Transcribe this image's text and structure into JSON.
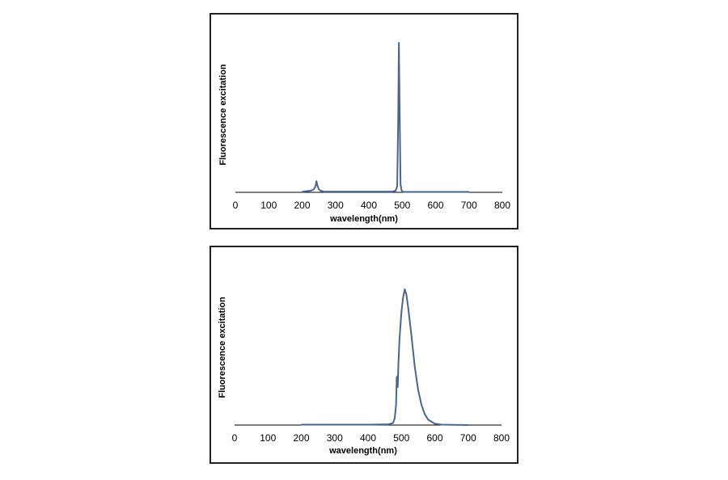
{
  "colors": {
    "line": "#4a6690",
    "axis": "#000000",
    "frame": "#222222"
  },
  "chart_data": [
    {
      "type": "line",
      "xlabel": "wavelength(nm)",
      "ylabel": "Fluorescence excitation",
      "xlim": [
        0,
        800
      ],
      "ylim": [
        0,
        1
      ],
      "xticks": [
        "0",
        "100",
        "200",
        "300",
        "400",
        "500",
        "600",
        "700",
        "800"
      ],
      "series": [
        {
          "x": [
            200,
            225,
            235,
            240,
            243,
            246,
            250,
            256,
            265,
            300,
            400,
            470,
            480,
            485,
            488,
            490,
            492,
            495,
            498,
            500,
            505,
            520,
            600,
            700
          ],
          "y": [
            0.005,
            0.01,
            0.02,
            0.04,
            0.075,
            0.045,
            0.02,
            0.01,
            0.005,
            0.005,
            0.005,
            0.005,
            0.01,
            0.04,
            0.5,
            1.0,
            0.6,
            0.05,
            0.015,
            0.005,
            0.003,
            0.003,
            0.003,
            0.003
          ]
        }
      ]
    },
    {
      "type": "line",
      "xlabel": "wavelength(nm)",
      "ylabel": "Fluorescence excitation",
      "xlim": [
        0,
        800
      ],
      "ylim": [
        0,
        1
      ],
      "xticks": [
        "0",
        "100",
        "200",
        "300",
        "400",
        "500",
        "600",
        "700",
        "800"
      ],
      "series": [
        {
          "x": [
            200,
            300,
            400,
            460,
            475,
            480,
            484,
            486,
            488,
            489,
            491,
            494,
            497,
            500,
            505,
            510,
            515,
            520,
            530,
            540,
            550,
            560,
            570,
            580,
            600,
            620,
            700
          ],
          "y": [
            0.003,
            0.003,
            0.003,
            0.005,
            0.015,
            0.05,
            0.15,
            0.35,
            0.36,
            0.28,
            0.45,
            0.62,
            0.73,
            0.83,
            0.94,
            1.0,
            0.96,
            0.87,
            0.66,
            0.43,
            0.26,
            0.15,
            0.08,
            0.04,
            0.01,
            0.003,
            0.0
          ]
        }
      ]
    }
  ]
}
